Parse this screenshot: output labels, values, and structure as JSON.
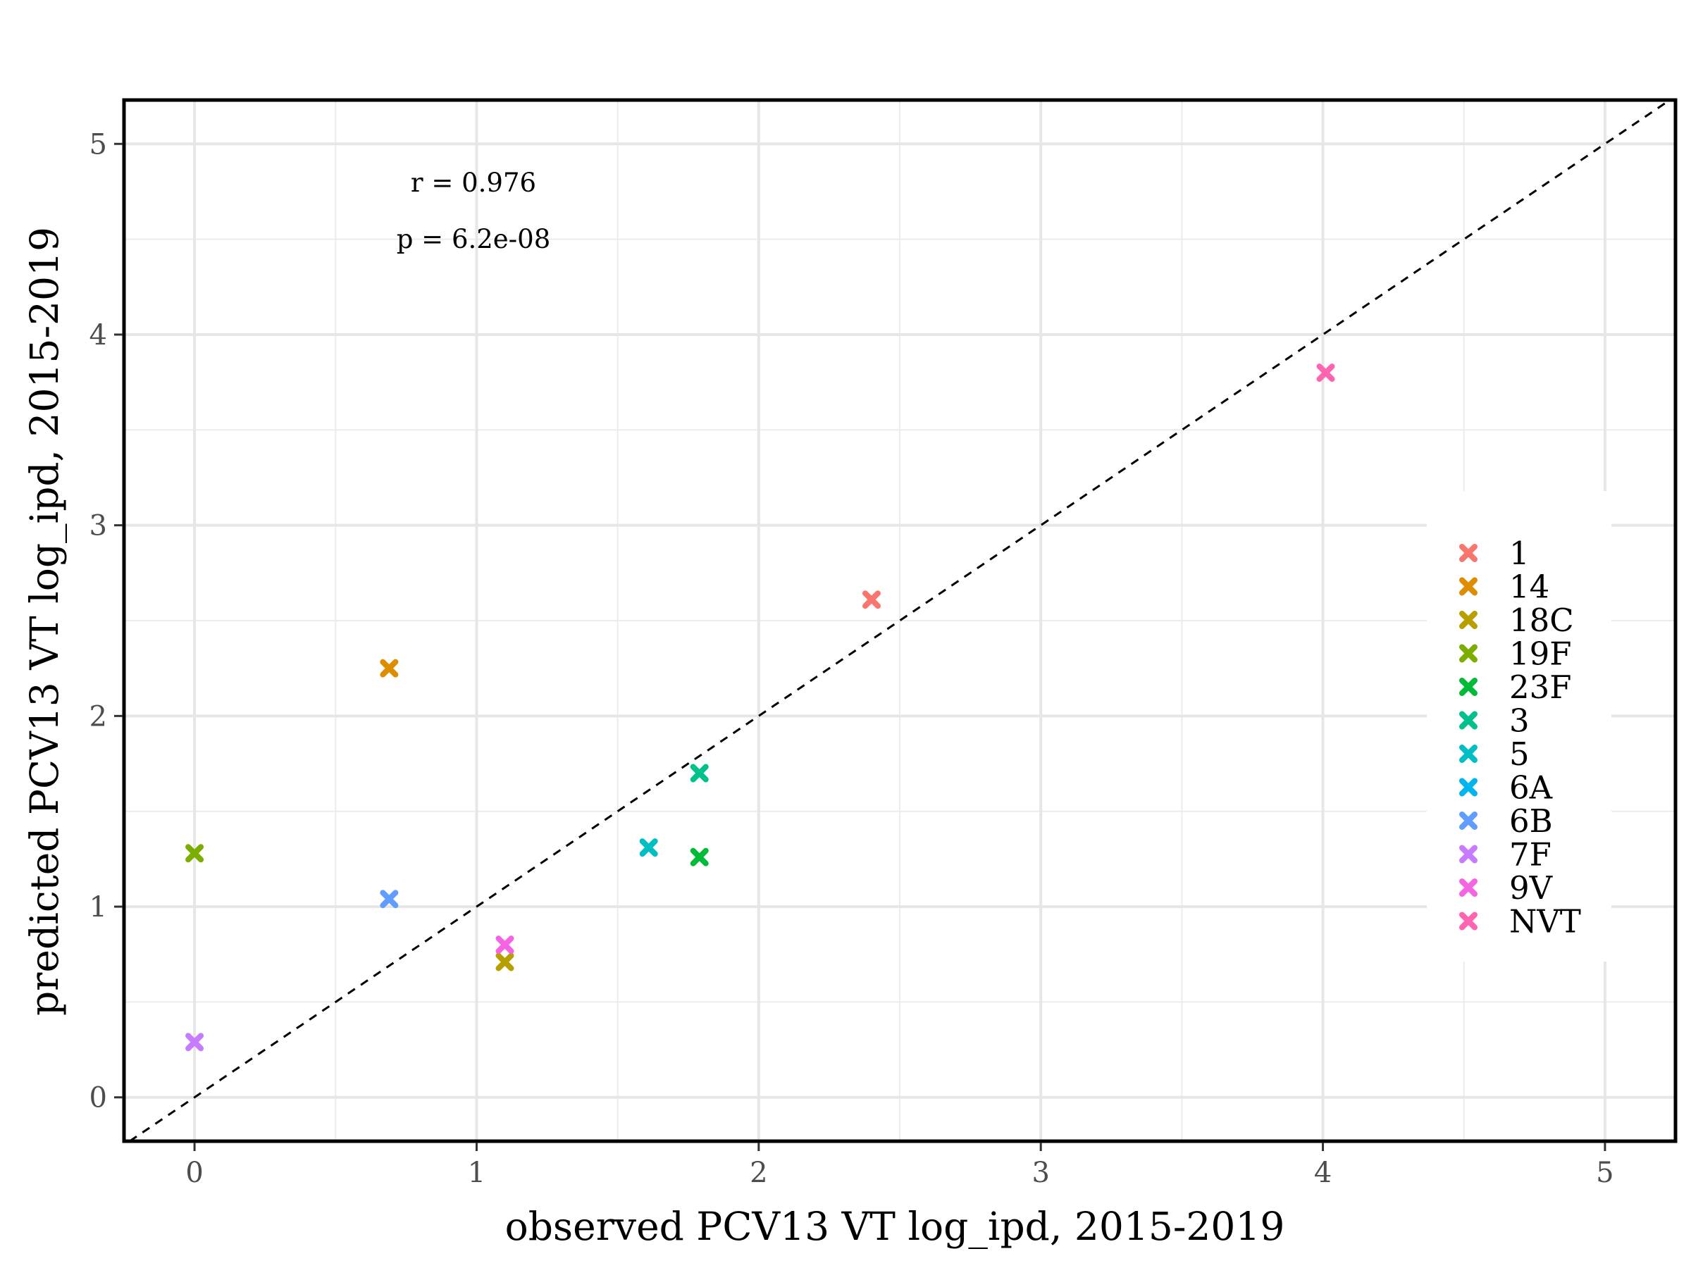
{
  "chart_data": {
    "type": "scatter",
    "xlabel": "observed PCV13 VT log_ipd, 2015-2019",
    "ylabel": "predicted PCV13 VT log_ipd, 2015-2019",
    "xlim": [
      -0.25,
      5.25
    ],
    "ylim": [
      -0.23,
      5.23
    ],
    "x_ticks": [
      "0",
      "1",
      "2",
      "3",
      "4",
      "5"
    ],
    "y_ticks": [
      "0",
      "1",
      "2",
      "3",
      "4",
      "5"
    ],
    "grid": true,
    "reference_line": {
      "type": "identity",
      "style": "dashed"
    },
    "annotations": [
      "r = 0.976",
      "p = 6.2e-08"
    ],
    "legend_position": "right",
    "series": [
      {
        "name": "1",
        "color": "#F8766D",
        "points": [
          [
            2.4,
            2.61
          ]
        ]
      },
      {
        "name": "14",
        "color": "#DE8C00",
        "points": [
          [
            0.69,
            2.25
          ]
        ]
      },
      {
        "name": "18C",
        "color": "#B79F00",
        "points": [
          [
            1.1,
            0.71
          ]
        ]
      },
      {
        "name": "19F",
        "color": "#7CAE00",
        "points": [
          [
            0.0,
            1.28
          ]
        ]
      },
      {
        "name": "23F",
        "color": "#00BA38",
        "points": [
          [
            1.79,
            1.26
          ]
        ]
      },
      {
        "name": "3",
        "color": "#00C08B",
        "points": [
          [
            1.79,
            1.7
          ]
        ]
      },
      {
        "name": "5",
        "color": "#00BFC4",
        "points": [
          [
            1.61,
            1.31
          ]
        ]
      },
      {
        "name": "6A",
        "color": "#00B4F0",
        "points": []
      },
      {
        "name": "6B",
        "color": "#619CFF",
        "points": [
          [
            0.69,
            1.04
          ]
        ]
      },
      {
        "name": "7F",
        "color": "#C77CFF",
        "points": [
          [
            0.0,
            0.29
          ]
        ]
      },
      {
        "name": "9V",
        "color": "#F564E3",
        "points": [
          [
            1.1,
            0.8
          ]
        ]
      },
      {
        "name": "NVT",
        "color": "#FF64B0",
        "points": [
          [
            4.01,
            3.8
          ]
        ]
      }
    ]
  }
}
